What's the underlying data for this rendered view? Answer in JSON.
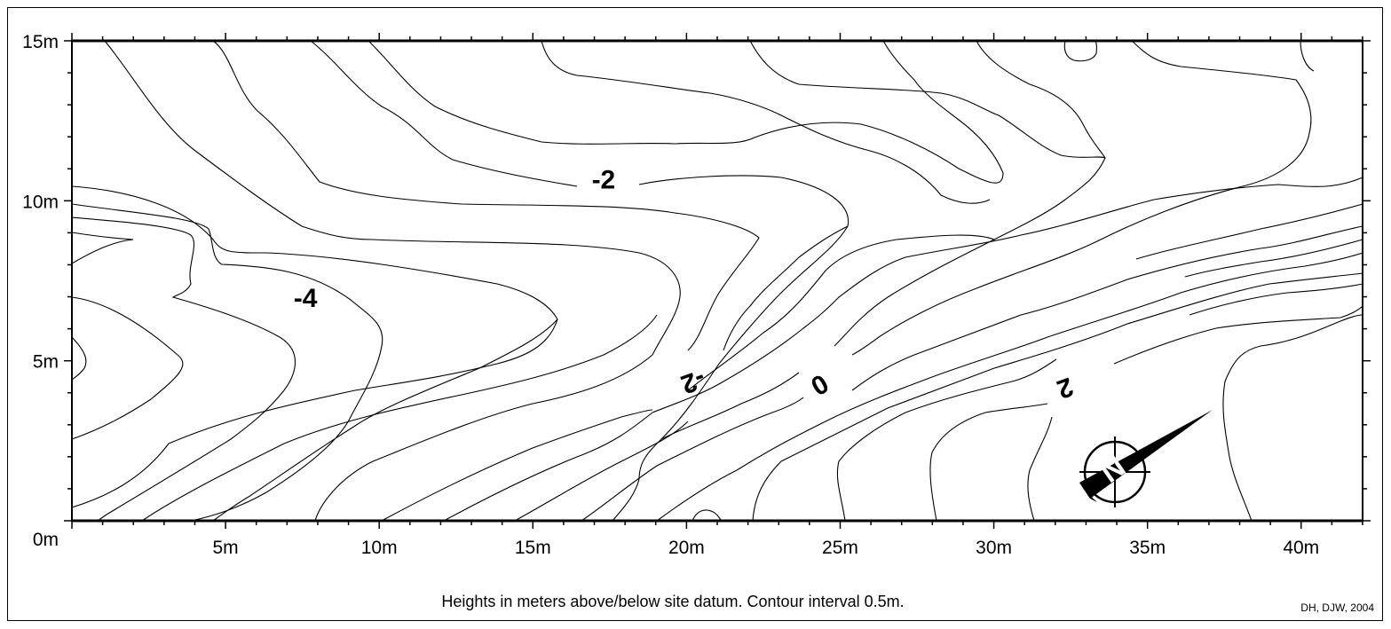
{
  "map": {
    "caption": "Heights in meters above/below site datum.  Contour interval 0.5m.",
    "credit": "DH, DJW, 2004",
    "x_axis": {
      "range_m": [
        0,
        42
      ],
      "tick_labels": [
        {
          "value": 5,
          "label": "5m"
        },
        {
          "value": 10,
          "label": "10m"
        },
        {
          "value": 15,
          "label": "15m"
        },
        {
          "value": 20,
          "label": "20m"
        },
        {
          "value": 25,
          "label": "25m"
        },
        {
          "value": 30,
          "label": "30m"
        },
        {
          "value": 35,
          "label": "35m"
        },
        {
          "value": 40,
          "label": "40m"
        }
      ]
    },
    "y_axis": {
      "range_m": [
        0,
        15
      ],
      "tick_labels": [
        {
          "value": 0,
          "label": "0m"
        },
        {
          "value": 5,
          "label": "5m"
        },
        {
          "value": 10,
          "label": "10m"
        },
        {
          "value": 15,
          "label": "15m"
        }
      ]
    },
    "contour_labels": [
      {
        "text": "-2",
        "x": 17.3,
        "y": 10.6,
        "rotate": 0
      },
      {
        "text": "-4",
        "x": 7.6,
        "y": 6.9,
        "rotate": 0
      },
      {
        "text": "-2",
        "x": 20.2,
        "y": 4.4,
        "rotate": 160
      },
      {
        "text": "0",
        "x": 24.3,
        "y": 4.3,
        "rotate": 150
      },
      {
        "text": "2",
        "x": 32.3,
        "y": 4.2,
        "rotate": 160
      }
    ],
    "contour_interval_m": 0.5,
    "north_arrow": {
      "icon": "north-arrow-icon",
      "letter": "N",
      "direction_deg": 55
    }
  }
}
